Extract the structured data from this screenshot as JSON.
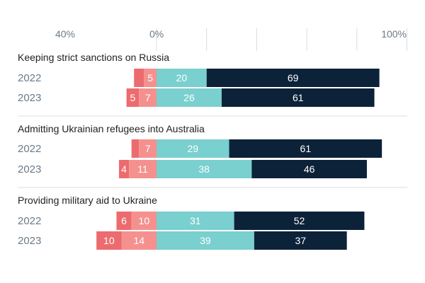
{
  "chart_data": {
    "type": "bar",
    "subtype": "diverging-stacked-horizontal",
    "axis": {
      "tick_labels": [
        "40%",
        "0%",
        "100%"
      ],
      "tick_values": [
        -40,
        0,
        100
      ],
      "range": [
        -40,
        100
      ],
      "grid_values": [
        0,
        20,
        40,
        60,
        80,
        100
      ]
    },
    "groups": [
      {
        "title": "Keeping strict sanctions on Russia",
        "rows": [
          {
            "year": "2022",
            "neg_strong": 4,
            "neg_strong_label": "",
            "neg": 5,
            "neg_label": "5",
            "pos": 20,
            "pos_label": "20",
            "pos_strong": 69,
            "pos_strong_label": "69"
          },
          {
            "year": "2023",
            "neg_strong": 5,
            "neg_strong_label": "5",
            "neg": 7,
            "neg_label": "7",
            "pos": 26,
            "pos_label": "26",
            "pos_strong": 61,
            "pos_strong_label": "61"
          }
        ]
      },
      {
        "title": "Admitting Ukrainian refugees into Australia",
        "rows": [
          {
            "year": "2022",
            "neg_strong": 3,
            "neg_strong_label": "",
            "neg": 7,
            "neg_label": "7",
            "pos": 29,
            "pos_label": "29",
            "pos_strong": 61,
            "pos_strong_label": "61"
          },
          {
            "year": "2023",
            "neg_strong": 4,
            "neg_strong_label": "4",
            "neg": 11,
            "neg_label": "11",
            "pos": 38,
            "pos_label": "38",
            "pos_strong": 46,
            "pos_strong_label": "46"
          }
        ]
      },
      {
        "title": "Providing military aid to Ukraine",
        "rows": [
          {
            "year": "2022",
            "neg_strong": 6,
            "neg_strong_label": "6",
            "neg": 10,
            "neg_label": "10",
            "pos": 31,
            "pos_label": "31",
            "pos_strong": 52,
            "pos_strong_label": "52"
          },
          {
            "year": "2023",
            "neg_strong": 10,
            "neg_strong_label": "10",
            "neg": 14,
            "neg_label": "14",
            "pos": 39,
            "pos_label": "39",
            "pos_strong": 37,
            "pos_strong_label": "37"
          }
        ]
      }
    ],
    "colors": {
      "neg_strong": "#ec6b6f",
      "neg": "#f4918f",
      "pos": "#7acfcf",
      "pos_strong": "#0c2239",
      "title_text": "#222222",
      "year_text": "#6b7a86",
      "tick_text": "#6b7a86",
      "grid": "#d8dde1",
      "label_light": "#ffffff"
    }
  }
}
